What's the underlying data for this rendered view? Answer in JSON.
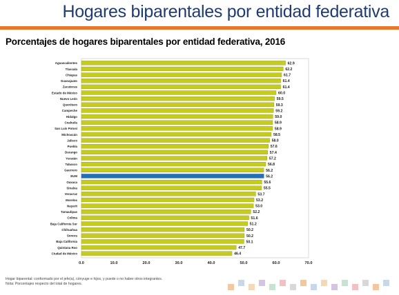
{
  "header": {
    "slide_title": "Hogares biparentales por entidad federativa",
    "chart_title": "Porcentajes de hogares biparentales por entidad federativa, 2016"
  },
  "colors": {
    "bar": "#c6cc1f",
    "bar_stroke": "#8f961a",
    "highlight_bar": "#1e73b8",
    "highlight_stroke": "#124a80",
    "title_rule": "#e8772e",
    "slide_title": "#1f3b73",
    "deco_tiles": [
      "#f2c7a3",
      "#c9d7ea",
      "#f4d9b8",
      "#d4c6e0",
      "#c8e3d2",
      "#f2c2c2",
      "#d8d8d8"
    ]
  },
  "chart_data": {
    "type": "bar",
    "orientation": "horizontal",
    "categories": [
      "Aguascalientes",
      "Tlaxcala",
      "Chiapas",
      "Guanajuato",
      "Zacatecas",
      "Estado de México",
      "Nuevo León",
      "Querétaro",
      "Campeche",
      "Hidalgo",
      "Coahuila",
      "San Luis Potosí",
      "Michoacán",
      "Jalisco",
      "Puebla",
      "Durango",
      "Yucatán",
      "Tabasco",
      "Guerrero",
      "EUM",
      "Oaxaca",
      "Sinaloa",
      "Veracruz",
      "Morelos",
      "Nayarit",
      "Tamaulipas",
      "Colima",
      "Baja California Sur",
      "Chihuahua",
      "Sonora",
      "Baja California",
      "Quintana Roo",
      "Ciudad de México"
    ],
    "values": [
      62.9,
      62.2,
      61.7,
      61.4,
      61.4,
      60.0,
      59.5,
      59.3,
      59.2,
      59.0,
      58.9,
      58.9,
      58.5,
      58.0,
      57.6,
      57.4,
      57.2,
      56.8,
      56.2,
      56.2,
      55.6,
      55.5,
      53.7,
      53.2,
      53.0,
      52.2,
      51.6,
      51.2,
      50.2,
      50.2,
      50.1,
      47.7,
      46.4
    ],
    "value_labels": [
      "62.9",
      "62.2",
      "61.7",
      "61.4",
      "61.4",
      "60.0",
      "59.5",
      "59.3",
      "59.2",
      "59.0",
      "58.9",
      "58.9",
      "58.5",
      "58.0",
      "57.6",
      "57.4",
      "57.2",
      "56.8",
      "56.2",
      "56.2",
      "55.6",
      "55.5",
      "53.7",
      "53.2",
      "53.0",
      "52.2",
      "51.6",
      "51.2",
      "50.2",
      "50.2",
      "50.1",
      "47.7",
      "46.4"
    ],
    "highlight_category": "EUM",
    "xlim": [
      0,
      70
    ],
    "xticks": [
      "0.0",
      "10.0",
      "20.0",
      "30.0",
      "40.0",
      "50.0",
      "60.0",
      "70.0"
    ],
    "grid": false,
    "legend": "none"
  },
  "footnotes": {
    "line1": "Hogar biparental: conformado por el jefe(a), cónyuge e hijos, y puede o no haber otros integrantes.",
    "line2": "Nota: Porcentajes respecto del total de hogares."
  }
}
